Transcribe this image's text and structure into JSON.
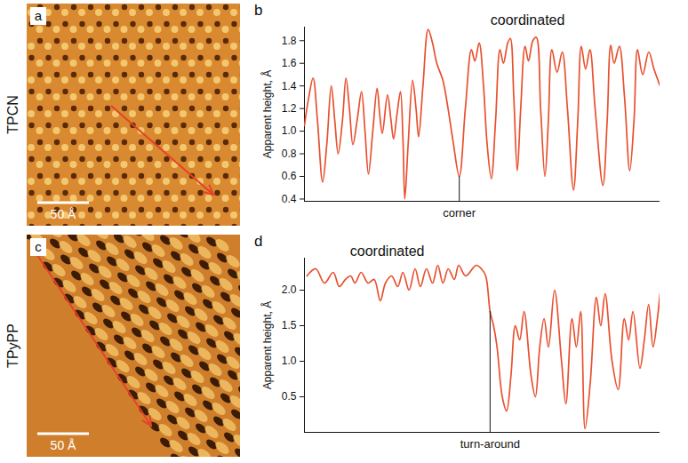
{
  "images": [
    {
      "letter": "a",
      "label": "TPCN",
      "scale_bar": "50 Å"
    },
    {
      "letter": "c",
      "label": "TPyPP",
      "scale_bar": "50 Å"
    }
  ],
  "chart_data": [
    {
      "type": "line",
      "title": "b",
      "y_label": "Apparent height, Å",
      "color": "#e8502f",
      "tick_labels": "y",
      "xlim": [
        0,
        411
      ],
      "ylim": [
        0.38,
        1.92
      ],
      "yticks": [
        0.4,
        0.6,
        0.8,
        {
          "value": 1,
          "label": "1.0"
        },
        1.2,
        1.4,
        1.6,
        1.8
      ],
      "x": [
        0,
        5,
        10,
        15,
        21,
        26,
        31,
        35,
        39,
        44,
        48,
        52,
        56,
        61,
        66,
        70,
        74,
        79,
        84,
        87,
        90,
        96,
        100,
        103,
        107,
        111,
        114,
        116,
        120,
        125,
        129,
        132,
        137,
        143,
        148,
        153,
        160,
        166,
        172,
        179,
        186,
        193,
        197,
        202,
        207,
        211,
        216,
        221,
        226,
        230,
        235,
        238,
        242,
        246,
        250,
        255,
        259,
        264,
        268,
        273,
        278,
        282,
        286,
        292,
        298,
        304,
        311,
        316,
        320,
        325,
        330,
        336,
        345,
        350,
        354,
        358,
        364,
        370,
        376,
        381,
        385,
        391,
        398,
        404,
        411
      ],
      "values": [
        1.05,
        1.3,
        1.47,
        1.1,
        0.55,
        0.9,
        1.4,
        1.1,
        0.8,
        1.1,
        1.47,
        1.2,
        0.88,
        1.1,
        1.35,
        1.0,
        0.62,
        1.0,
        1.38,
        1.15,
        0.98,
        1.32,
        1.1,
        0.93,
        1.15,
        1.35,
        0.9,
        0.4,
        0.9,
        1.45,
        1.2,
        0.95,
        1.4,
        1.9,
        1.78,
        1.6,
        1.45,
        1.2,
        0.9,
        0.6,
        1.2,
        1.72,
        1.62,
        1.78,
        1.4,
        0.9,
        0.58,
        1.1,
        1.72,
        1.6,
        1.78,
        1.82,
        1.3,
        0.65,
        1.2,
        1.75,
        1.62,
        1.8,
        1.83,
        1.2,
        0.6,
        1.1,
        1.72,
        1.52,
        1.7,
        1.2,
        0.48,
        1.1,
        1.75,
        1.55,
        1.72,
        1.2,
        0.52,
        1.1,
        1.76,
        1.6,
        1.75,
        1.3,
        0.65,
        1.1,
        1.72,
        1.5,
        1.7,
        1.55,
        1.4
      ],
      "annotations": [
        {
          "text": "coordinated",
          "x": 258
        }
      ],
      "markers": [
        {
          "text": "corner",
          "x": 179
        }
      ]
    },
    {
      "type": "line",
      "title": "d",
      "y_label": "Apparent height, Å",
      "color": "#e8502f",
      "tick_labels": "y",
      "xlim": [
        0,
        408
      ],
      "ylim": [
        0,
        2.45
      ],
      "yticks": [
        0.5,
        {
          "value": 1,
          "label": "1.0"
        },
        1.5,
        {
          "value": 2,
          "label": "2.0"
        }
      ],
      "x": [
        3,
        13,
        23,
        33,
        40,
        47,
        53,
        58,
        65,
        73,
        80,
        87,
        93,
        100,
        107,
        113,
        120,
        127,
        133,
        140,
        147,
        153,
        159,
        165,
        172,
        177,
        185,
        197,
        203,
        208,
        213,
        217,
        221,
        227,
        232,
        237,
        242,
        247,
        252,
        260,
        265,
        270,
        275,
        280,
        287,
        295,
        300,
        307,
        312,
        317,
        322,
        328,
        335,
        340,
        345,
        353,
        360,
        367,
        372,
        377,
        385,
        390,
        395,
        400,
        405,
        408
      ],
      "values": [
        2.2,
        2.3,
        2.1,
        2.25,
        2.05,
        2.15,
        2.2,
        2.1,
        2.25,
        2.1,
        2.15,
        1.85,
        2.1,
        2.2,
        2.05,
        2.25,
        2.0,
        2.3,
        2.05,
        2.3,
        2.1,
        2.35,
        2.1,
        2.3,
        2.15,
        2.35,
        2.2,
        2.35,
        2.3,
        2.2,
        1.7,
        1.5,
        1.2,
        0.5,
        0.3,
        0.8,
        1.5,
        1.3,
        1.7,
        0.8,
        0.5,
        1.2,
        1.6,
        1.2,
        2.0,
        1.0,
        0.4,
        1.6,
        1.2,
        1.7,
        0.05,
        0.7,
        1.9,
        1.5,
        1.95,
        1.0,
        0.6,
        1.6,
        1.3,
        1.7,
        0.9,
        1.3,
        1.8,
        1.2,
        1.6,
        1.95
      ],
      "annotations": [
        {
          "text": "coordinated",
          "x": 95
        }
      ],
      "markers": [
        {
          "text": "turn-around",
          "x": 213
        }
      ]
    }
  ]
}
